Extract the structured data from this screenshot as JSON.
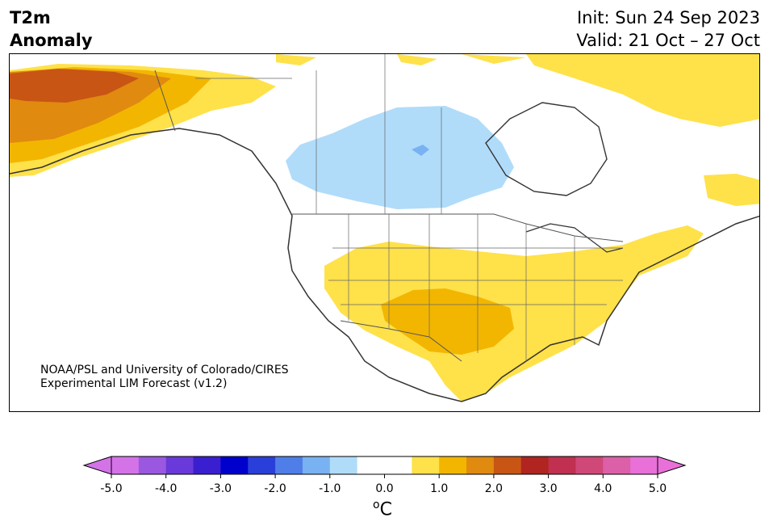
{
  "header": {
    "title_line1": "T2m",
    "title_line2": "Anomaly",
    "init": "Init: Sun 24 Sep 2023",
    "valid": "Valid: 21 Oct – 27 Oct"
  },
  "credit": {
    "line1": "NOAA/PSL and University of Colorado/CIRES",
    "line2": "Experimental LIM Forecast (v1.2)"
  },
  "colorbar": {
    "colors": [
      "#d473e8",
      "#9a58e0",
      "#6a39d9",
      "#3a1fd0",
      "#0000cc",
      "#2a3fd9",
      "#4f7ee8",
      "#78b2f2",
      "#b0dcfa",
      "#ffffff",
      "#ffffff",
      "#ffe14a",
      "#f2b600",
      "#e08a10",
      "#c85514",
      "#b02520",
      "#c03050",
      "#d04878",
      "#dc60a8",
      "#e870d8"
    ],
    "ticks": [
      "-5.0",
      "-4.0",
      "-3.0",
      "-2.0",
      "-1.0",
      "0.0",
      "1.0",
      "2.0",
      "3.0",
      "4.0",
      "5.0"
    ],
    "unit_base": "C",
    "unit_sup": "o"
  },
  "map": {
    "region": "North America",
    "anomaly_colors": {
      "cool_light": "#b0dcfa",
      "cool_mid": "#78b2f2",
      "warm_light": "#ffe14a",
      "warm_mid": "#f2b600",
      "warm_strong": "#e08a10",
      "warm_hot": "#c85514"
    }
  }
}
